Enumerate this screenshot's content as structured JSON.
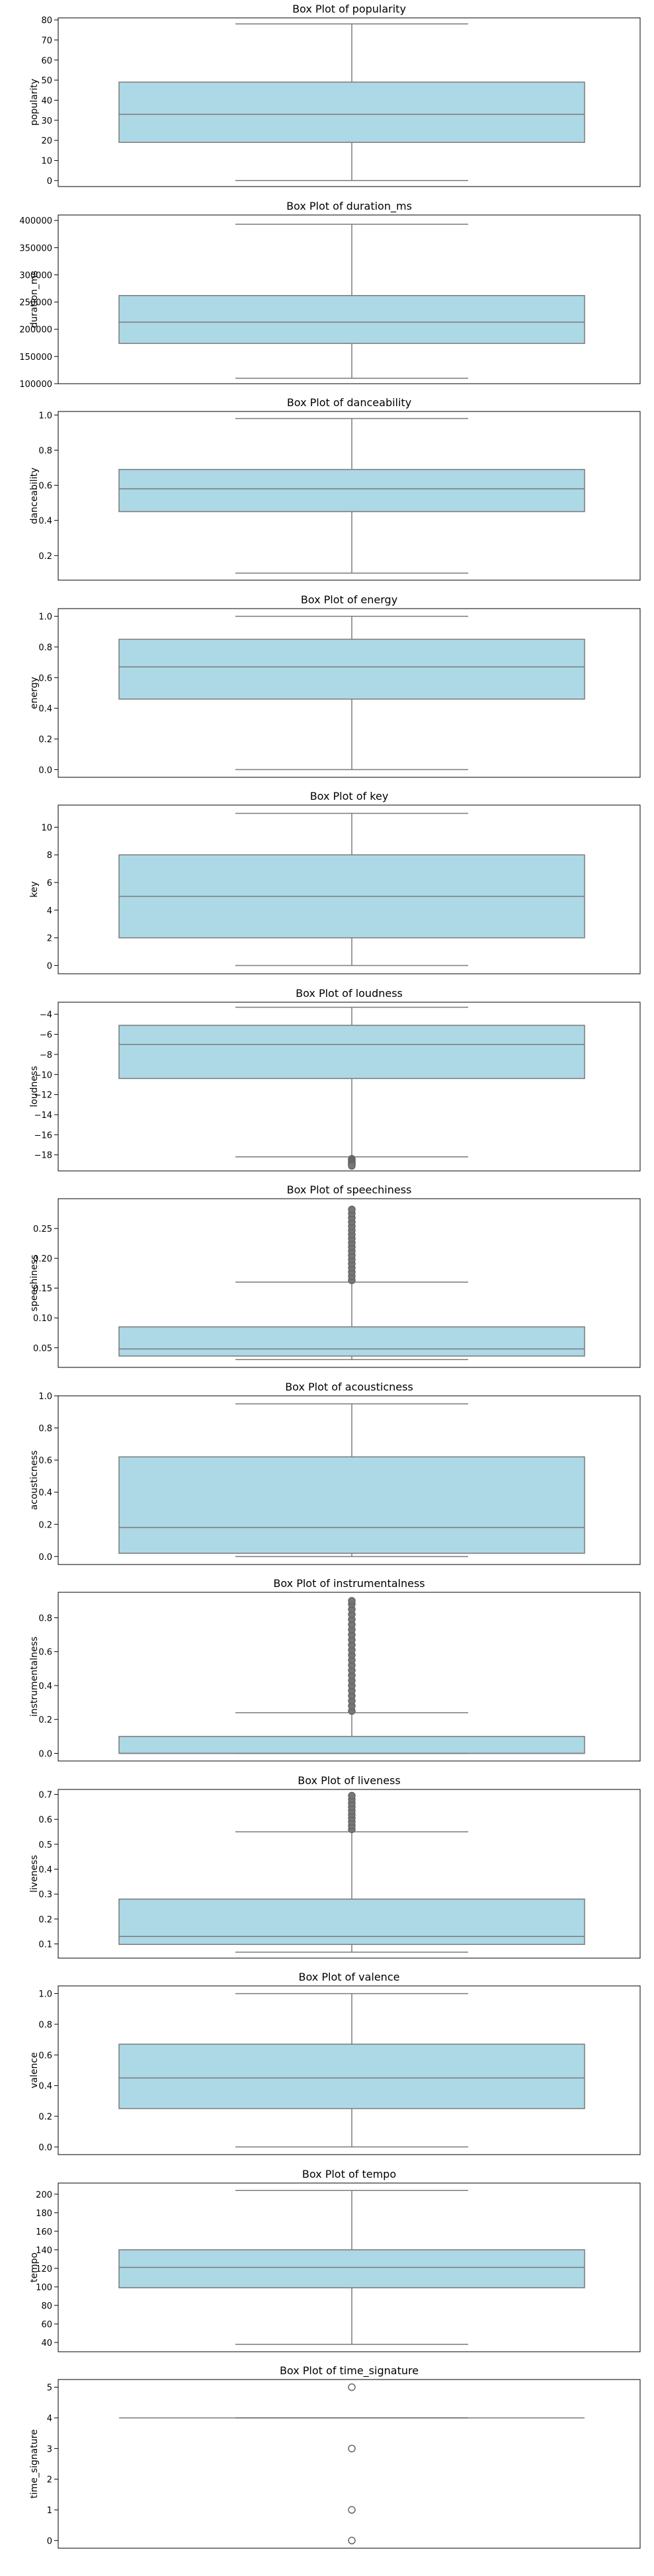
{
  "chart_data": [
    {
      "type": "box",
      "title": "Box Plot of popularity",
      "ylabel": "popularity",
      "ylim": [
        -3,
        81
      ],
      "yticks": [
        0,
        10,
        20,
        30,
        40,
        50,
        60,
        70,
        80
      ],
      "box": {
        "whisker_low": 0,
        "q1": 19,
        "median": 33,
        "q3": 49,
        "whisker_high": 78
      },
      "outliers": []
    },
    {
      "type": "box",
      "title": "Box Plot of duration_ms",
      "ylabel": "duration_ms",
      "ylim": [
        100000,
        410000
      ],
      "yticks": [
        100000,
        150000,
        200000,
        250000,
        300000,
        350000,
        400000
      ],
      "box": {
        "whisker_low": 110000,
        "q1": 174000,
        "median": 213000,
        "q3": 262000,
        "whisker_high": 393000
      },
      "outliers": []
    },
    {
      "type": "box",
      "title": "Box Plot of danceability",
      "ylabel": "danceability",
      "ylim": [
        0.06,
        1.02
      ],
      "yticks": [
        0.2,
        0.4,
        0.6,
        0.8,
        1.0
      ],
      "box": {
        "whisker_low": 0.1,
        "q1": 0.45,
        "median": 0.58,
        "q3": 0.69,
        "whisker_high": 0.98
      },
      "outliers": []
    },
    {
      "type": "box",
      "title": "Box Plot of energy",
      "ylabel": "energy",
      "ylim": [
        -0.05,
        1.05
      ],
      "yticks": [
        0.0,
        0.2,
        0.4,
        0.6,
        0.8,
        1.0
      ],
      "box": {
        "whisker_low": 0.0,
        "q1": 0.46,
        "median": 0.67,
        "q3": 0.85,
        "whisker_high": 1.0
      },
      "outliers": []
    },
    {
      "type": "box",
      "title": "Box Plot of key",
      "ylabel": "key",
      "ylim": [
        -0.6,
        11.6
      ],
      "yticks": [
        0,
        2,
        4,
        6,
        8,
        10
      ],
      "box": {
        "whisker_low": 0,
        "q1": 2,
        "median": 5,
        "q3": 8,
        "whisker_high": 11
      },
      "outliers": []
    },
    {
      "type": "box",
      "title": "Box Plot of loudness",
      "ylabel": "loudness",
      "ylim": [
        -19.6,
        -2.8
      ],
      "yticks": [
        -18,
        -16,
        -14,
        -12,
        -10,
        -8,
        -6,
        -4
      ],
      "box": {
        "whisker_low": -18.2,
        "q1": -10.4,
        "median": -7.0,
        "q3": -5.1,
        "whisker_high": -3.3
      },
      "outliers": [
        -18.4,
        -18.5,
        -18.6,
        -18.7,
        -18.8,
        -18.9,
        -19.0,
        -19.1
      ]
    },
    {
      "type": "box",
      "title": "Box Plot of speechiness",
      "ylabel": "speechiness",
      "ylim": [
        0.017,
        0.3
      ],
      "yticks": [
        0.05,
        0.1,
        0.15,
        0.2,
        0.25
      ],
      "box": {
        "whisker_low": 0.03,
        "q1": 0.036,
        "median": 0.048,
        "q3": 0.085,
        "whisker_high": 0.16
      },
      "outliers": [
        0.163,
        0.17,
        0.177,
        0.184,
        0.191,
        0.198,
        0.205,
        0.212,
        0.219,
        0.226,
        0.233,
        0.24,
        0.247,
        0.254,
        0.261,
        0.268,
        0.275,
        0.282
      ]
    },
    {
      "type": "box",
      "title": "Box Plot of acousticness",
      "ylabel": "acousticness",
      "ylim": [
        -0.05,
        1.0
      ],
      "yticks": [
        0.0,
        0.2,
        0.4,
        0.6,
        0.8,
        1.0
      ],
      "box": {
        "whisker_low": 0.0,
        "q1": 0.02,
        "median": 0.18,
        "q3": 0.62,
        "whisker_high": 0.95
      },
      "outliers": []
    },
    {
      "type": "box",
      "title": "Box Plot of instrumentalness",
      "ylabel": "instrumentalness",
      "ylim": [
        -0.045,
        0.95
      ],
      "yticks": [
        0.0,
        0.2,
        0.4,
        0.6,
        0.8
      ],
      "box": {
        "whisker_low": 0.0,
        "q1": 0.0,
        "median": 0.0,
        "q3": 0.1,
        "whisker_high": 0.24
      },
      "outliers": [
        0.25,
        0.28,
        0.31,
        0.34,
        0.37,
        0.4,
        0.43,
        0.46,
        0.49,
        0.52,
        0.55,
        0.58,
        0.61,
        0.64,
        0.67,
        0.7,
        0.73,
        0.76,
        0.79,
        0.82,
        0.85,
        0.88,
        0.9
      ]
    },
    {
      "type": "box",
      "title": "Box Plot of liveness",
      "ylabel": "liveness",
      "ylim": [
        0.043,
        0.72
      ],
      "yticks": [
        0.1,
        0.2,
        0.3,
        0.4,
        0.5,
        0.6,
        0.7
      ],
      "box": {
        "whisker_low": 0.067,
        "q1": 0.098,
        "median": 0.13,
        "q3": 0.28,
        "whisker_high": 0.55
      },
      "outliers": [
        0.56,
        0.575,
        0.59,
        0.605,
        0.62,
        0.635,
        0.65,
        0.665,
        0.68,
        0.695
      ]
    },
    {
      "type": "box",
      "title": "Box Plot of valence",
      "ylabel": "valence",
      "ylim": [
        -0.05,
        1.05
      ],
      "yticks": [
        0.0,
        0.2,
        0.4,
        0.6,
        0.8,
        1.0
      ],
      "box": {
        "whisker_low": 0.0,
        "q1": 0.25,
        "median": 0.45,
        "q3": 0.67,
        "whisker_high": 1.0
      },
      "outliers": []
    },
    {
      "type": "box",
      "title": "Box Plot of tempo",
      "ylabel": "tempo",
      "ylim": [
        30,
        212
      ],
      "yticks": [
        40,
        60,
        80,
        100,
        120,
        140,
        160,
        180,
        200
      ],
      "box": {
        "whisker_low": 38,
        "q1": 99,
        "median": 121,
        "q3": 140,
        "whisker_high": 204
      },
      "outliers": []
    },
    {
      "type": "box",
      "title": "Box Plot of time_signature",
      "ylabel": "time_signature",
      "ylim": [
        -0.25,
        5.25
      ],
      "yticks": [
        0,
        1,
        2,
        3,
        4,
        5
      ],
      "box": {
        "whisker_low": 4,
        "q1": 4,
        "median": 4,
        "q3": 4,
        "whisker_high": 4
      },
      "outliers": [
        0,
        1,
        3,
        5
      ]
    }
  ],
  "colors": {
    "box_fill": "#add8e6",
    "box_line": "#7a7a7a",
    "axis": "#000000",
    "outlier_fill": "#777777"
  }
}
